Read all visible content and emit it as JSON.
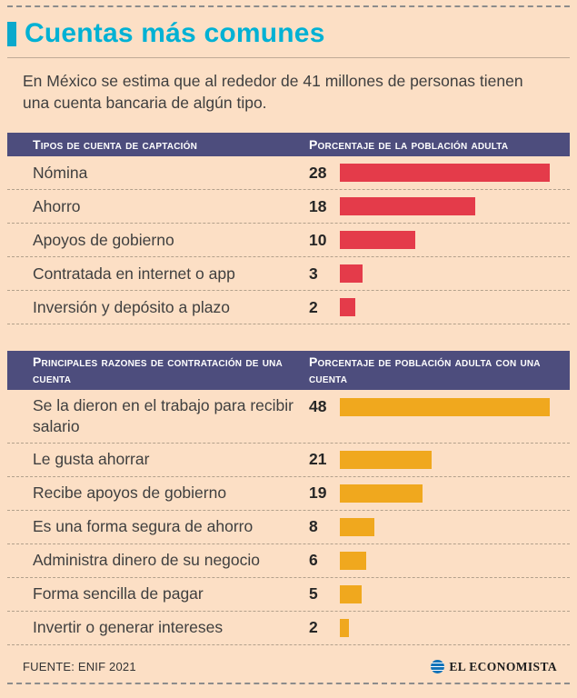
{
  "title": "Cuentas más comunes",
  "intro": "En México se estima que al rededor de 41 millones de personas tienen una cuenta bancaria de algún tipo.",
  "footer": {
    "source": "FUENTE:  ENIF 2021",
    "brand": "EL ECONOMISTA"
  },
  "colors": {
    "background": "#fcdfc5",
    "accent_cyan": "#00b1d4",
    "header_navy": "#4d4d7d",
    "bar_red": "#e43b4a",
    "bar_yellow": "#f0a81e",
    "text": "#3f3f3f"
  },
  "chart_data": [
    {
      "type": "bar",
      "title": "Tipos de cuenta de captación",
      "value_header": "Porcentaje de la población adulta",
      "categories": [
        "Nómina",
        "Ahorro",
        "Apoyos de gobierno",
        "Contratada en internet o app",
        "Inversión y depósito a plazo"
      ],
      "values": [
        28,
        18,
        10,
        3,
        2
      ],
      "max": 28,
      "bar_color": "#e43b4a",
      "grid": false,
      "legend": "none"
    },
    {
      "type": "bar",
      "title": "Principales razones de contratación de una cuenta",
      "value_header": "Porcentaje de población adulta con una cuenta",
      "categories": [
        "Se la dieron en el trabajo para recibir salario",
        "Le gusta ahorrar",
        "Recibe apoyos de gobierno",
        "Es una forma segura de ahorro",
        "Administra dinero de su negocio",
        "Forma sencilla de pagar",
        "Invertir o generar intereses"
      ],
      "values": [
        48,
        21,
        19,
        8,
        6,
        5,
        2
      ],
      "max": 48,
      "bar_color": "#f0a81e",
      "grid": false,
      "legend": "none"
    }
  ]
}
